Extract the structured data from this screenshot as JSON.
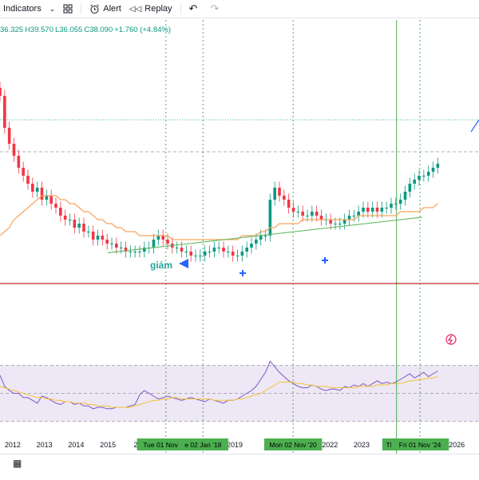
{
  "toolbar": {
    "indicators_label": "Indicators",
    "alert_label": "Alert",
    "replay_label": "Replay",
    "icons": [
      "chevron-down-icon",
      "templates-grid-icon",
      "alarm-clock-icon",
      "replay-rewind-icon",
      "undo-icon",
      "redo-icon"
    ]
  },
  "ohlc": {
    "open": "36.325",
    "high": "H39.570",
    "low": "L36.055",
    "close": "C38.090",
    "change": "+1.760 (+4.84%)"
  },
  "chart_data": {
    "type": "candlestick",
    "x_ticks": [
      "2012",
      "2013",
      "2014",
      "2015",
      "201",
      "2019",
      "20",
      "2022",
      "2023",
      "2026"
    ],
    "x_tick_years": [
      2012,
      2013,
      2014,
      2015,
      2016,
      2019,
      2021,
      2022,
      2023,
      2026
    ],
    "x_range": [
      2011.6,
      2026.7
    ],
    "cursor_labels": [
      "Tue 01 Nov '16",
      "e 02 Jan '18",
      "Mon 02 Nov '20",
      "Thu 01",
      "Fri 01 Nov '24"
    ],
    "cursor_years": [
      2016.83,
      2018.0,
      2020.84,
      2024.1,
      2024.84
    ],
    "annotation_text": "giảm",
    "price_range": [
      5,
      60
    ],
    "closes": [
      55,
      47,
      43,
      40,
      37,
      35,
      33,
      31,
      32,
      29,
      30,
      28,
      27,
      25,
      24,
      24,
      22,
      23,
      21,
      21,
      19,
      20,
      19,
      18,
      18,
      17,
      17,
      16,
      16,
      16,
      16,
      17,
      17,
      19,
      20,
      19,
      18,
      17,
      17,
      16,
      16,
      15,
      15,
      15,
      16,
      16,
      17,
      17,
      16,
      16,
      15,
      15,
      16,
      17,
      18,
      19,
      20,
      20,
      29,
      32,
      30,
      29,
      27,
      26,
      26,
      25,
      25,
      26,
      25,
      24,
      24,
      23,
      23,
      23,
      24,
      25,
      25,
      26,
      27,
      26,
      27,
      26,
      27,
      27,
      28,
      28,
      29,
      31,
      33,
      34,
      35,
      35,
      36,
      37,
      38
    ],
    "ma_values": [
      20,
      21,
      22,
      24,
      25,
      26,
      27,
      28,
      29,
      30,
      30,
      30,
      30,
      29,
      29,
      28,
      28,
      27,
      26,
      26,
      25,
      24,
      24,
      23,
      23,
      22,
      22,
      21,
      21,
      21,
      20,
      20,
      20,
      20,
      20,
      20,
      20,
      19,
      19,
      19,
      19,
      19,
      19,
      19,
      19,
      19,
      19,
      19,
      19,
      19,
      19,
      19,
      20,
      20,
      20,
      20,
      21,
      21,
      22,
      22,
      23,
      23,
      23,
      23,
      23,
      24,
      24,
      24,
      24,
      24,
      24,
      24,
      24,
      24,
      24,
      24,
      24,
      25,
      25,
      25,
      25,
      25,
      25,
      25,
      25,
      25,
      26,
      26,
      26,
      26,
      26,
      27,
      27,
      27,
      28
    ],
    "trendline": [
      [
        2015.0,
        15.7
      ],
      [
        2024.9,
        24.6
      ]
    ],
    "support_level": 8,
    "rsi_values": [
      63,
      55,
      52,
      50,
      50,
      47,
      47,
      45,
      43,
      48,
      47,
      45,
      43,
      42,
      44,
      44,
      42,
      43,
      41,
      41,
      39,
      40,
      40,
      39,
      39,
      40,
      40,
      40,
      41,
      42,
      49,
      52,
      50,
      48,
      46,
      47,
      48,
      47,
      46,
      45,
      46,
      47,
      46,
      45,
      44,
      46,
      45,
      44,
      43,
      45,
      45,
      46,
      48,
      50,
      52,
      55,
      60,
      65,
      73,
      69,
      65,
      62,
      59,
      57,
      55,
      54,
      54,
      56,
      55,
      53,
      52,
      53,
      53,
      52,
      55,
      54,
      56,
      55,
      57,
      55,
      57,
      59,
      57,
      58,
      57,
      58,
      60,
      62,
      64,
      61,
      63,
      65,
      62,
      64,
      66
    ],
    "rsi_ma": [
      55,
      54,
      53,
      52,
      51,
      50,
      49,
      48,
      47,
      47,
      46,
      46,
      45,
      45,
      44,
      44,
      43,
      43,
      43,
      42,
      42,
      41,
      41,
      41,
      40,
      40,
      40,
      40,
      40,
      41,
      42,
      43,
      44,
      45,
      45,
      46,
      46,
      47,
      47,
      46,
      46,
      46,
      46,
      46,
      46,
      46,
      45,
      45,
      45,
      45,
      45,
      46,
      46,
      47,
      48,
      49,
      50,
      52,
      54,
      56,
      58,
      58,
      58,
      58,
      57,
      57,
      56,
      56,
      55,
      55,
      55,
      54,
      54,
      54,
      54,
      54,
      54,
      55,
      55,
      55,
      55,
      56,
      56,
      56,
      57,
      57,
      57,
      58,
      59,
      59,
      60,
      60,
      61,
      61,
      62
    ],
    "rsi_levels": [
      70,
      50,
      30
    ]
  },
  "colors": {
    "up": "#089981",
    "down": "#f23645",
    "ma": "#f7a35c",
    "trend": "#66bb6a",
    "support": "#c62828",
    "rsi": "#7e57c2",
    "rsi_ma": "#f4c430",
    "rsi_band": "#ede7f6"
  },
  "bottom": {
    "layout_icon": "layout-panel-icon"
  }
}
